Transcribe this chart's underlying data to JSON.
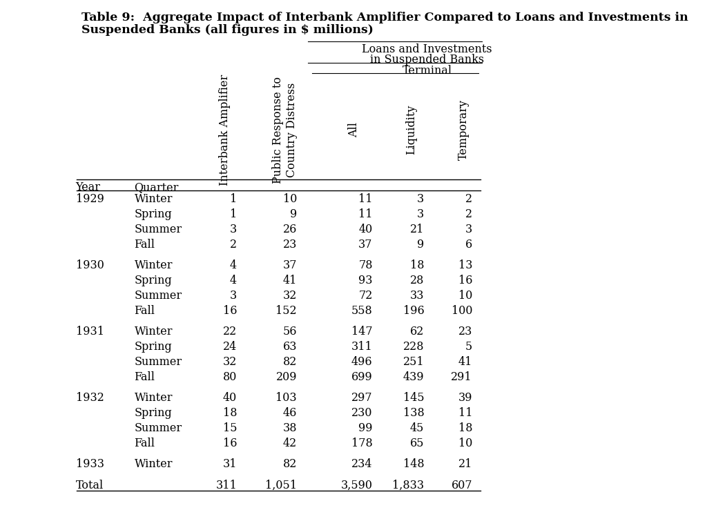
{
  "title_line1": "Table 9:  Aggregate Impact of Interbank Amplifier Compared to Loans and Investments in",
  "title_line2": "Suspended Banks (all figures in $ millions)",
  "span_header1": "Loans and Investments",
  "span_header2": "in Suspended Banks",
  "span_header3": "Terminal",
  "background_color": "#ffffff",
  "font_family": "serif",
  "font_size": 11.5,
  "title_font_size": 12.5,
  "row_data": [
    [
      "1929",
      "Winter",
      "1",
      "10",
      "11",
      "3",
      "2",
      false
    ],
    [
      "",
      "Spring",
      "1",
      "9",
      "11",
      "3",
      "2",
      false
    ],
    [
      "",
      "Summer",
      "3",
      "26",
      "40",
      "21",
      "3",
      false
    ],
    [
      "",
      "Fall",
      "2",
      "23",
      "37",
      "9",
      "6",
      false
    ],
    [
      "",
      "",
      "",
      "",
      "",
      "",
      "",
      true
    ],
    [
      "1930",
      "Winter",
      "4",
      "37",
      "78",
      "18",
      "13",
      false
    ],
    [
      "",
      "Spring",
      "4",
      "41",
      "93",
      "28",
      "16",
      false
    ],
    [
      "",
      "Summer",
      "3",
      "32",
      "72",
      "33",
      "10",
      false
    ],
    [
      "",
      "Fall",
      "16",
      "152",
      "558",
      "196",
      "100",
      false
    ],
    [
      "",
      "",
      "",
      "",
      "",
      "",
      "",
      true
    ],
    [
      "1931",
      "Winter",
      "22",
      "56",
      "147",
      "62",
      "23",
      false
    ],
    [
      "",
      "Spring",
      "24",
      "63",
      "311",
      "228",
      "5",
      false
    ],
    [
      "",
      "Summer",
      "32",
      "82",
      "496",
      "251",
      "41",
      false
    ],
    [
      "",
      "Fall",
      "80",
      "209",
      "699",
      "439",
      "291",
      false
    ],
    [
      "",
      "",
      "",
      "",
      "",
      "",
      "",
      true
    ],
    [
      "1932",
      "Winter",
      "40",
      "103",
      "297",
      "145",
      "39",
      false
    ],
    [
      "",
      "Spring",
      "18",
      "46",
      "230",
      "138",
      "11",
      false
    ],
    [
      "",
      "Summer",
      "15",
      "38",
      "99",
      "45",
      "18",
      false
    ],
    [
      "",
      "Fall",
      "16",
      "42",
      "178",
      "65",
      "10",
      false
    ],
    [
      "",
      "",
      "",
      "",
      "",
      "",
      "",
      true
    ],
    [
      "1933",
      "Winter",
      "31",
      "82",
      "234",
      "148",
      "21",
      false
    ],
    [
      "",
      "",
      "",
      "",
      "",
      "",
      "",
      true
    ],
    [
      "Total",
      "",
      "311",
      "1,051",
      "3,590",
      "1,833",
      "607",
      false
    ]
  ]
}
